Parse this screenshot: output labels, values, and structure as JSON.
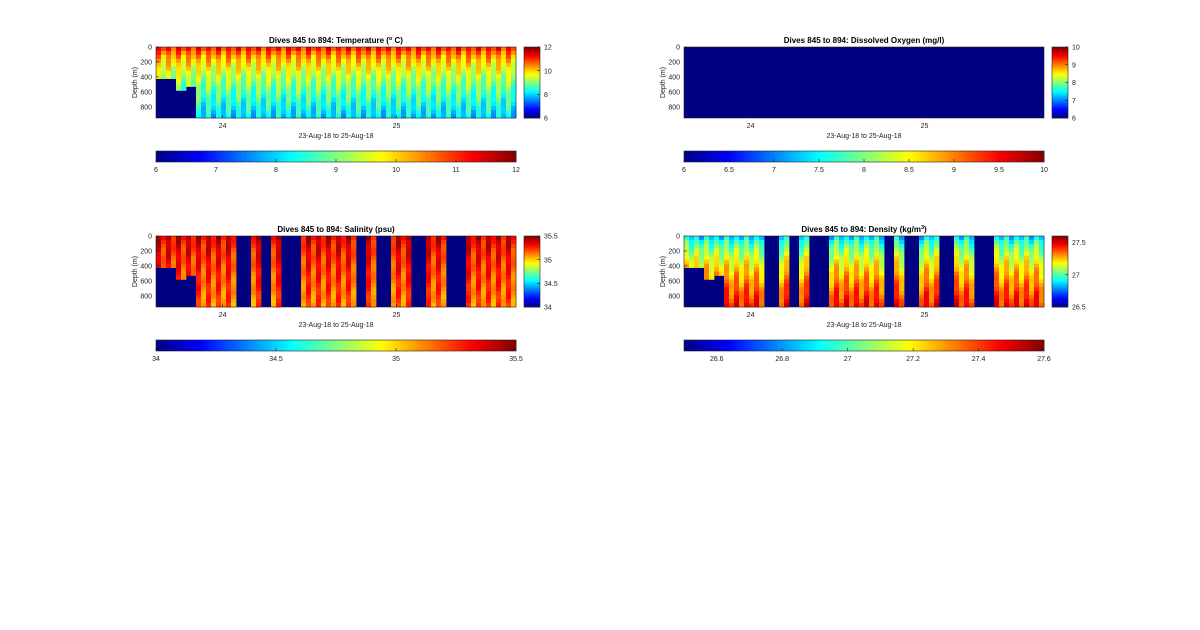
{
  "chart_data": [
    {
      "type": "heatmap",
      "title": "Dives 845 to 894: Temperature (",
      "title_sup": "o",
      "title_end": " C)",
      "ylabel": "Depth (m)",
      "xlabel": "23-Aug-18 to 25-Aug-18",
      "yticks": [
        0,
        200,
        400,
        600,
        800
      ],
      "xticks": [
        "24",
        "25"
      ],
      "ylim": [
        0,
        950
      ],
      "clim": [
        6,
        12
      ],
      "cbar_side_ticks": [
        6,
        8,
        10,
        12
      ],
      "cbar_bottom_ticks": [
        6,
        7,
        8,
        9,
        10,
        11,
        12
      ],
      "surface_value": 11.5,
      "deep_value": 8.0,
      "fill_value": 6,
      "pattern": "all"
    },
    {
      "type": "heatmap",
      "title": "Dives 845 to 894: Dissolved Oxygen (mg/l)",
      "title_sup": "",
      "title_end": "",
      "ylabel": "Depth (m)",
      "xlabel": "23-Aug-18 to 25-Aug-18",
      "yticks": [
        0,
        200,
        400,
        600,
        800
      ],
      "xticks": [
        "24",
        "25"
      ],
      "ylim": [
        0,
        950
      ],
      "clim": [
        6,
        10
      ],
      "cbar_side_ticks": [
        6,
        7,
        8,
        9,
        10
      ],
      "cbar_bottom_ticks": [
        6,
        6.5,
        7,
        7.5,
        8,
        8.5,
        9,
        9.5,
        10
      ],
      "surface_value": 6,
      "deep_value": 6,
      "fill_value": 6,
      "pattern": "empty"
    },
    {
      "type": "heatmap",
      "title": "Dives 845 to 894: Salinity (psu)",
      "title_sup": "",
      "title_end": "",
      "ylabel": "Depth (m)",
      "xlabel": "23-Aug-18 to 25-Aug-18",
      "yticks": [
        0,
        200,
        400,
        600,
        800
      ],
      "xticks": [
        "24",
        "25"
      ],
      "ylim": [
        0,
        950
      ],
      "clim": [
        34,
        35.5
      ],
      "cbar_side_ticks": [
        34,
        34.5,
        35,
        35.5
      ],
      "cbar_bottom_ticks": [
        34,
        34.5,
        35,
        35.5
      ],
      "surface_value": 35.4,
      "deep_value": 35.15,
      "fill_value": 34,
      "pattern": "gaps"
    },
    {
      "type": "heatmap",
      "title": "Dives 845 to 894: Density (kg/m",
      "title_sup": "3",
      "title_end": ")",
      "ylabel": "Depth (m)",
      "xlabel": "23-Aug-18 to 25-Aug-18",
      "yticks": [
        0,
        200,
        400,
        600,
        800
      ],
      "xticks": [
        "24",
        "25"
      ],
      "ylim": [
        0,
        950
      ],
      "clim": [
        26.5,
        27.6
      ],
      "cbar_side_ticks": [
        26.5,
        27,
        27.5
      ],
      "cbar_bottom_ticks": [
        26.6,
        26.8,
        27,
        27.2,
        27.4,
        27.6
      ],
      "surface_value": 26.8,
      "deep_value": 27.45,
      "fill_value": 26.5,
      "pattern": "gaps"
    }
  ]
}
